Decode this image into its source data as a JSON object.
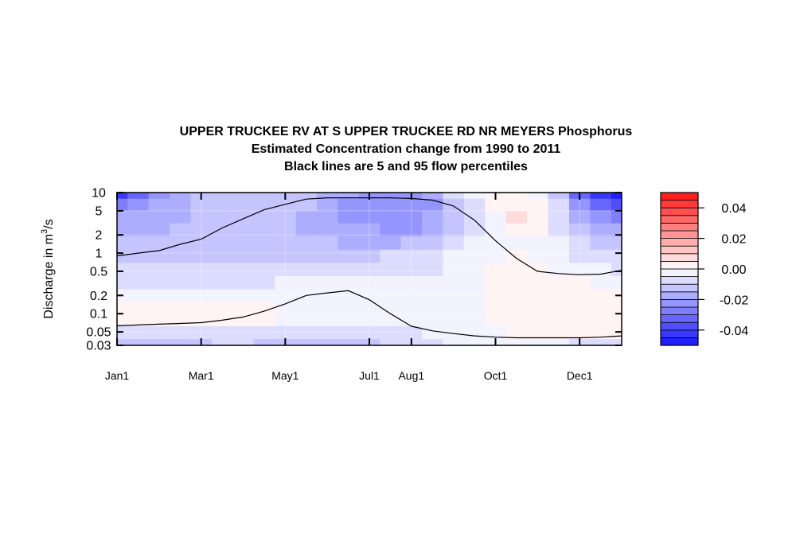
{
  "chart_data": {
    "type": "heatmap",
    "title": [
      "UPPER TRUCKEE RV AT S UPPER TRUCKEE RD NR MEYERS  Phosphorus",
      "Estimated Concentration change from 1990 to 2011",
      "Black lines are 5 and 95 flow percentiles"
    ],
    "ylabel": "Discharge in m",
    "ylabel_sup": "3",
    "ylabel_suffix": "/s",
    "yscale": "log",
    "ylim": [
      0.03,
      10
    ],
    "y_ticks": [
      0.03,
      0.05,
      0.1,
      0.2,
      0.5,
      1,
      2,
      5,
      10
    ],
    "y_tick_labels": [
      "0.03",
      "0.05",
      "0.1",
      "0.2",
      "0.5",
      "1",
      "2",
      "5",
      "10"
    ],
    "xlim": [
      0,
      12
    ],
    "x_ticks": [
      0,
      2,
      4,
      6,
      7,
      9,
      11
    ],
    "x_tick_labels": [
      "Jan1",
      "Mar1",
      "May1",
      "Jul1",
      "Aug1",
      "Oct1",
      "Dec1"
    ],
    "grid_x": [
      0,
      0.5,
      1,
      1.5,
      2,
      2.5,
      3,
      3.5,
      4,
      4.5,
      5,
      5.5,
      6,
      6.5,
      7,
      7.5,
      8,
      8.5,
      9,
      9.5,
      10,
      10.5,
      11,
      11.5,
      12
    ],
    "grid_y": [
      0.03,
      0.05,
      0.08,
      0.13,
      0.2,
      0.33,
      0.55,
      0.9,
      1.5,
      2.5,
      4,
      6.5,
      10
    ],
    "z": [
      [
        -0.012,
        -0.013,
        -0.013,
        -0.012,
        -0.011,
        -0.01,
        -0.01,
        -0.011,
        -0.012,
        -0.013,
        -0.013,
        -0.012,
        -0.011,
        -0.01,
        -0.009,
        -0.006,
        -0.004,
        -0.002,
        -0.001,
        -0.001,
        -0.002,
        -0.004,
        -0.006,
        -0.007,
        -0.007
      ],
      [
        -0.008,
        -0.008,
        -0.008,
        -0.008,
        -0.008,
        -0.008,
        -0.008,
        -0.008,
        -0.008,
        -0.008,
        -0.008,
        -0.008,
        -0.007,
        -0.006,
        -0.006,
        -0.005,
        -0.003,
        -0.002,
        -0.001,
        0.001,
        0.001,
        0.001,
        0.001,
        0.001,
        0.001
      ],
      [
        0.002,
        0.002,
        0.002,
        0.002,
        0.002,
        0.002,
        0.002,
        0.001,
        -0.001,
        -0.003,
        -0.004,
        -0.004,
        -0.004,
        -0.004,
        -0.004,
        -0.004,
        -0.003,
        -0.001,
        0.001,
        0.002,
        0.002,
        0.002,
        0.002,
        0.002,
        0.002
      ],
      [
        0.002,
        0.002,
        0.002,
        0.002,
        0.002,
        0.002,
        0.002,
        0.001,
        -0.002,
        -0.003,
        -0.004,
        -0.004,
        -0.004,
        -0.004,
        -0.004,
        -0.004,
        -0.003,
        -0.001,
        0.001,
        0.002,
        0.002,
        0.002,
        0.002,
        0.002,
        0.002
      ],
      [
        -0.002,
        -0.002,
        -0.002,
        -0.002,
        -0.002,
        -0.002,
        -0.002,
        -0.003,
        -0.003,
        -0.004,
        -0.004,
        -0.004,
        -0.004,
        -0.004,
        -0.004,
        -0.003,
        -0.002,
        -0.001,
        0.001,
        0.002,
        0.002,
        0.002,
        0.002,
        0.002,
        0.002
      ],
      [
        -0.006,
        -0.006,
        -0.006,
        -0.006,
        -0.006,
        -0.006,
        -0.006,
        -0.006,
        -0.005,
        -0.005,
        -0.005,
        -0.005,
        -0.005,
        -0.005,
        -0.005,
        -0.004,
        -0.003,
        -0.002,
        0.001,
        0.002,
        0.002,
        0.002,
        0.001,
        -0.001,
        -0.002
      ],
      [
        -0.01,
        -0.01,
        -0.01,
        -0.01,
        -0.01,
        -0.009,
        -0.009,
        -0.009,
        -0.009,
        -0.009,
        -0.009,
        -0.009,
        -0.008,
        -0.008,
        -0.007,
        -0.006,
        -0.004,
        -0.002,
        0.001,
        0.002,
        0.001,
        -0.001,
        -0.003,
        -0.005,
        -0.006
      ],
      [
        -0.012,
        -0.012,
        -0.012,
        -0.012,
        -0.012,
        -0.012,
        -0.012,
        -0.012,
        -0.012,
        -0.012,
        -0.011,
        -0.011,
        -0.011,
        -0.01,
        -0.009,
        -0.008,
        -0.005,
        -0.003,
        -0.001,
        0.001,
        -0.001,
        -0.003,
        -0.006,
        -0.008,
        -0.009
      ],
      [
        -0.015,
        -0.015,
        -0.014,
        -0.014,
        -0.013,
        -0.012,
        -0.012,
        -0.012,
        -0.013,
        -0.014,
        -0.015,
        -0.016,
        -0.016,
        -0.016,
        -0.015,
        -0.012,
        -0.008,
        -0.005,
        -0.002,
        -0.001,
        -0.001,
        -0.005,
        -0.009,
        -0.012,
        -0.013
      ],
      [
        -0.018,
        -0.017,
        -0.016,
        -0.015,
        -0.014,
        -0.013,
        -0.012,
        -0.012,
        -0.014,
        -0.016,
        -0.018,
        -0.019,
        -0.02,
        -0.021,
        -0.021,
        -0.018,
        -0.012,
        -0.008,
        -0.004,
        0.002,
        0.0,
        -0.006,
        -0.012,
        -0.016,
        -0.018
      ],
      [
        -0.02,
        -0.019,
        -0.017,
        -0.016,
        -0.014,
        -0.013,
        -0.012,
        -0.012,
        -0.014,
        -0.016,
        -0.019,
        -0.021,
        -0.022,
        -0.023,
        -0.023,
        -0.02,
        -0.014,
        -0.008,
        -0.002,
        0.006,
        0.001,
        -0.007,
        -0.016,
        -0.022,
        -0.026
      ],
      [
        -0.027,
        -0.024,
        -0.02,
        -0.017,
        -0.014,
        -0.013,
        -0.012,
        -0.012,
        -0.013,
        -0.015,
        -0.018,
        -0.021,
        -0.023,
        -0.024,
        -0.024,
        -0.021,
        -0.014,
        -0.006,
        0.0,
        0.003,
        0.001,
        -0.01,
        -0.024,
        -0.032,
        -0.038
      ],
      [
        -0.042,
        -0.034,
        -0.024,
        -0.018,
        -0.014,
        -0.013,
        -0.012,
        -0.012,
        -0.013,
        -0.015,
        -0.017,
        -0.02,
        -0.022,
        -0.023,
        -0.022,
        -0.018,
        -0.01,
        -0.003,
        0.001,
        0.001,
        -0.002,
        -0.014,
        -0.032,
        -0.042,
        -0.048
      ]
    ],
    "p5": [
      [
        0,
        0.063
      ],
      [
        0.5,
        0.065
      ],
      [
        1,
        0.067
      ],
      [
        1.5,
        0.069
      ],
      [
        2,
        0.071
      ],
      [
        2.5,
        0.078
      ],
      [
        3,
        0.088
      ],
      [
        3.5,
        0.11
      ],
      [
        4,
        0.145
      ],
      [
        4.5,
        0.2
      ],
      [
        5,
        0.22
      ],
      [
        5.5,
        0.24
      ],
      [
        6,
        0.17
      ],
      [
        6.5,
        0.1
      ],
      [
        7,
        0.062
      ],
      [
        7.5,
        0.052
      ],
      [
        8,
        0.047
      ],
      [
        8.5,
        0.043
      ],
      [
        9,
        0.041
      ],
      [
        9.5,
        0.04
      ],
      [
        10,
        0.04
      ],
      [
        10.5,
        0.04
      ],
      [
        11,
        0.04
      ],
      [
        11.5,
        0.041
      ],
      [
        12,
        0.043
      ],
      [
        12.5,
        0.05
      ],
      [
        13,
        0.055
      ],
      [
        13.5,
        0.06
      ],
      [
        14,
        0.062
      ]
    ],
    "p95": [
      [
        0,
        0.9
      ],
      [
        0.5,
        1.0
      ],
      [
        1,
        1.1
      ],
      [
        1.5,
        1.4
      ],
      [
        2,
        1.7
      ],
      [
        2.5,
        2.6
      ],
      [
        3,
        3.7
      ],
      [
        3.5,
        5.2
      ],
      [
        4,
        6.4
      ],
      [
        4.5,
        7.8
      ],
      [
        5,
        8.2
      ],
      [
        5.5,
        8.2
      ],
      [
        6,
        8.2
      ],
      [
        6.5,
        8.2
      ],
      [
        7,
        8.0
      ],
      [
        7.5,
        7.5
      ],
      [
        8,
        6.0
      ],
      [
        8.5,
        3.5
      ],
      [
        9,
        1.6
      ],
      [
        9.5,
        0.82
      ],
      [
        10,
        0.5
      ],
      [
        10.5,
        0.46
      ],
      [
        11,
        0.44
      ],
      [
        11.5,
        0.45
      ],
      [
        12,
        0.52
      ],
      [
        12.5,
        0.62
      ],
      [
        13,
        0.72
      ],
      [
        13.5,
        0.82
      ],
      [
        14,
        0.85
      ]
    ],
    "legend": {
      "position": "right",
      "levels": [
        -0.05,
        -0.045,
        -0.04,
        -0.035,
        -0.03,
        -0.025,
        -0.02,
        -0.015,
        -0.01,
        -0.005,
        0,
        0.005,
        0.01,
        0.015,
        0.02,
        0.025,
        0.03,
        0.035,
        0.04,
        0.045,
        0.05
      ],
      "ticks": [
        0.04,
        0.02,
        0.0,
        -0.02,
        -0.04
      ],
      "tick_labels": [
        "0.04",
        "0.02",
        "0.00",
        "-0.02",
        "-0.04"
      ]
    },
    "colors": {
      "negative": "#0000ff",
      "positive": "#ff0000",
      "neutral": "#ffffff",
      "line": "#000000"
    }
  }
}
